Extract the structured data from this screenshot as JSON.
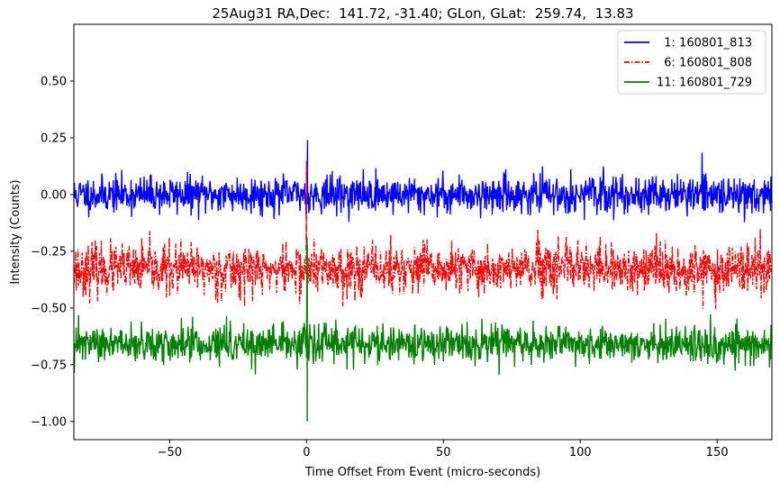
{
  "chart_data": {
    "type": "line",
    "title": "25Aug31 RA,Dec:  141.72, -31.40; GLon, GLat:  259.74,  13.83",
    "xlabel": "Time Offset From Event (micro-seconds)",
    "ylabel": "Intensity (Counts)",
    "xlim": [
      -85,
      170
    ],
    "ylim": [
      -1.08,
      0.75
    ],
    "xticks": [
      -50,
      0,
      50,
      100,
      150
    ],
    "xtick_labels": [
      "−50",
      "0",
      "50",
      "100",
      "150"
    ],
    "yticks": [
      0.5,
      0.25,
      0.0,
      -0.25,
      -0.5,
      -0.75,
      -1.0
    ],
    "ytick_labels": [
      "0.50",
      "0.25",
      "0.00",
      "−0.25",
      "−0.50",
      "−0.75",
      "−1.00"
    ],
    "grid": false,
    "legend_position": "top-right",
    "series": [
      {
        "name": "  1: 160801_813",
        "color": "#0000ff",
        "style": "solid",
        "baseline": 0.0,
        "noise_sd": 0.04,
        "event": {
          "x": 0.4,
          "peak": 0.24
        }
      },
      {
        "name": "  6: 160801_808",
        "color": "#ff0000",
        "style": "dashdot",
        "baseline": -0.33,
        "noise_sd": 0.055,
        "event": {
          "x": 0.0,
          "peak": 0.15
        }
      },
      {
        "name": "11: 160801_729",
        "color": "#008000",
        "style": "solid",
        "baseline": -0.66,
        "noise_sd": 0.04,
        "event": {
          "x": 0.2,
          "peak": -0.19,
          "trough": -1.0
        }
      }
    ]
  }
}
